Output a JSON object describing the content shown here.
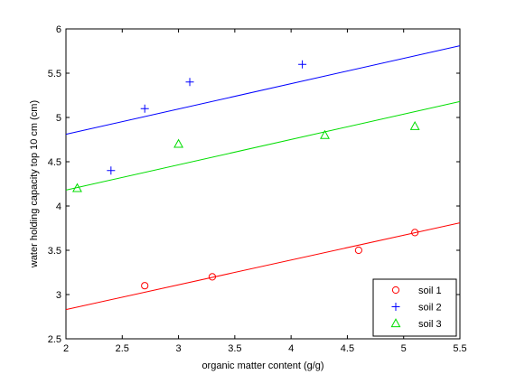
{
  "chart_data": {
    "type": "scatter",
    "title": "",
    "xlabel": "organic matter content (g/g)",
    "ylabel": "water holding capacity top 10 cm (cm)",
    "xlim": [
      2,
      5.5
    ],
    "ylim": [
      2.5,
      6
    ],
    "xticks": [
      "2",
      "2.5",
      "3",
      "3.5",
      "4",
      "4.5",
      "5",
      "5.5"
    ],
    "yticks": [
      "2.5",
      "3",
      "3.5",
      "4",
      "4.5",
      "5",
      "5.5",
      "6"
    ],
    "grid": false,
    "legend_position": "bottom-right",
    "series": [
      {
        "name": "soil 1",
        "marker": "circle",
        "color": "#ff0000",
        "points": [
          [
            2.7,
            3.1
          ],
          [
            3.3,
            3.2
          ],
          [
            4.6,
            3.5
          ],
          [
            5.1,
            3.7
          ]
        ],
        "fit_line": [
          [
            2,
            2.83
          ],
          [
            5.5,
            3.81
          ]
        ]
      },
      {
        "name": "soil 2",
        "marker": "plus",
        "color": "#0000ff",
        "points": [
          [
            2.4,
            4.4
          ],
          [
            2.7,
            5.1
          ],
          [
            3.1,
            5.4
          ],
          [
            4.1,
            5.6
          ]
        ],
        "fit_line": [
          [
            2,
            4.81
          ],
          [
            5.5,
            5.81
          ]
        ]
      },
      {
        "name": "soil 3",
        "marker": "triangle",
        "color": "#00dd00",
        "points": [
          [
            2.1,
            4.2
          ],
          [
            3.0,
            4.7
          ],
          [
            4.3,
            4.8
          ],
          [
            5.1,
            4.9
          ]
        ],
        "fit_line": [
          [
            2,
            4.18
          ],
          [
            5.5,
            5.18
          ]
        ]
      }
    ]
  }
}
